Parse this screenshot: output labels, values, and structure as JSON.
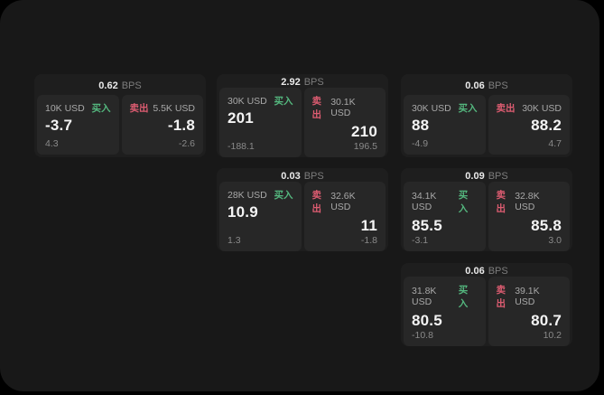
{
  "labels": {
    "bps": "BPS",
    "buy": "买入",
    "sell": "卖出"
  },
  "colors": {
    "buy_green": "#54b77e",
    "sell_red": "#dd5c71",
    "surface": "#181818",
    "card": "#1e1e1e",
    "tile": "#272727"
  },
  "cards": [
    {
      "bps": "0.62",
      "buy": {
        "notional": "10K USD",
        "price": "-3.7",
        "delta": "4.3"
      },
      "sell": {
        "notional": "5.5K USD",
        "price": "-1.8",
        "delta": "-2.6"
      }
    },
    {
      "bps": "2.92",
      "buy": {
        "notional": "30K USD",
        "price": "201",
        "delta": "-188.1"
      },
      "sell": {
        "notional": "30.1K USD",
        "price": "210",
        "delta": "196.5"
      }
    },
    {
      "bps": "0.06",
      "buy": {
        "notional": "30K USD",
        "price": "88",
        "delta": "-4.9"
      },
      "sell": {
        "notional": "30K USD",
        "price": "88.2",
        "delta": "4.7"
      }
    },
    {
      "bps": "0.03",
      "buy": {
        "notional": "28K USD",
        "price": "10.9",
        "delta": "1.3"
      },
      "sell": {
        "notional": "32.6K USD",
        "price": "11",
        "delta": "-1.8"
      }
    },
    {
      "bps": "0.09",
      "buy": {
        "notional": "34.1K USD",
        "price": "85.5",
        "delta": "-3.1"
      },
      "sell": {
        "notional": "32.8K USD",
        "price": "85.8",
        "delta": "3.0"
      }
    },
    {
      "bps": "0.06",
      "buy": {
        "notional": "31.8K USD",
        "price": "80.5",
        "delta": "-10.8"
      },
      "sell": {
        "notional": "39.1K USD",
        "price": "80.7",
        "delta": "10.2"
      }
    }
  ]
}
